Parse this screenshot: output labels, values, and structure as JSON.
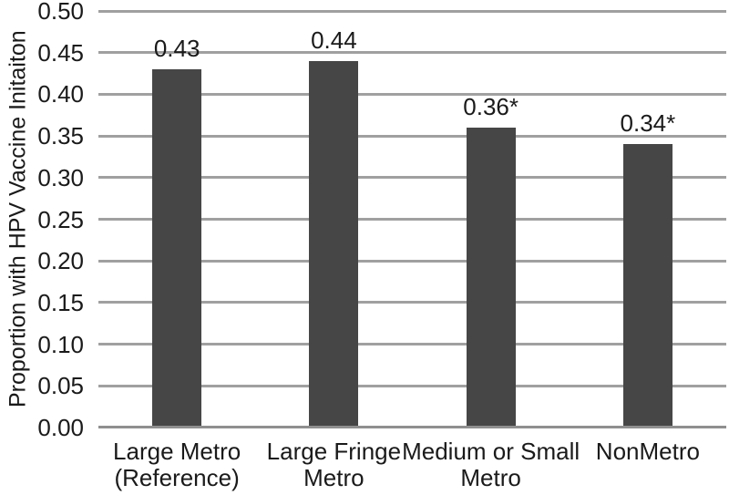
{
  "chart_data": {
    "type": "bar",
    "title": "",
    "ylabel": "Proportion with HPV Vaccine Initaiton",
    "xlabel": "",
    "categories": [
      "Large Metro\n(Reference)",
      "Large Fringe\nMetro",
      "Medium or Small\nMetro",
      "NonMetro"
    ],
    "values": [
      0.43,
      0.44,
      0.36,
      0.34
    ],
    "bar_labels": [
      "0.43",
      "0.44",
      "0.36*",
      "0.34*"
    ],
    "ylim": [
      0,
      0.5
    ],
    "ytick_interval": 0.05,
    "ytick_labels": [
      "0.50",
      "0.45",
      "0.40",
      "0.35",
      "0.30",
      "0.25",
      "0.20",
      "0.15",
      "0.10",
      "0.05",
      "0.00"
    ],
    "grid": "horizontal",
    "legend": "none",
    "colors": {
      "bar": "#464646",
      "gridline": "#a0a0a0",
      "axis_line": "#8f8f8f",
      "text": "#1a1a1a",
      "background": "#ffffff"
    }
  }
}
